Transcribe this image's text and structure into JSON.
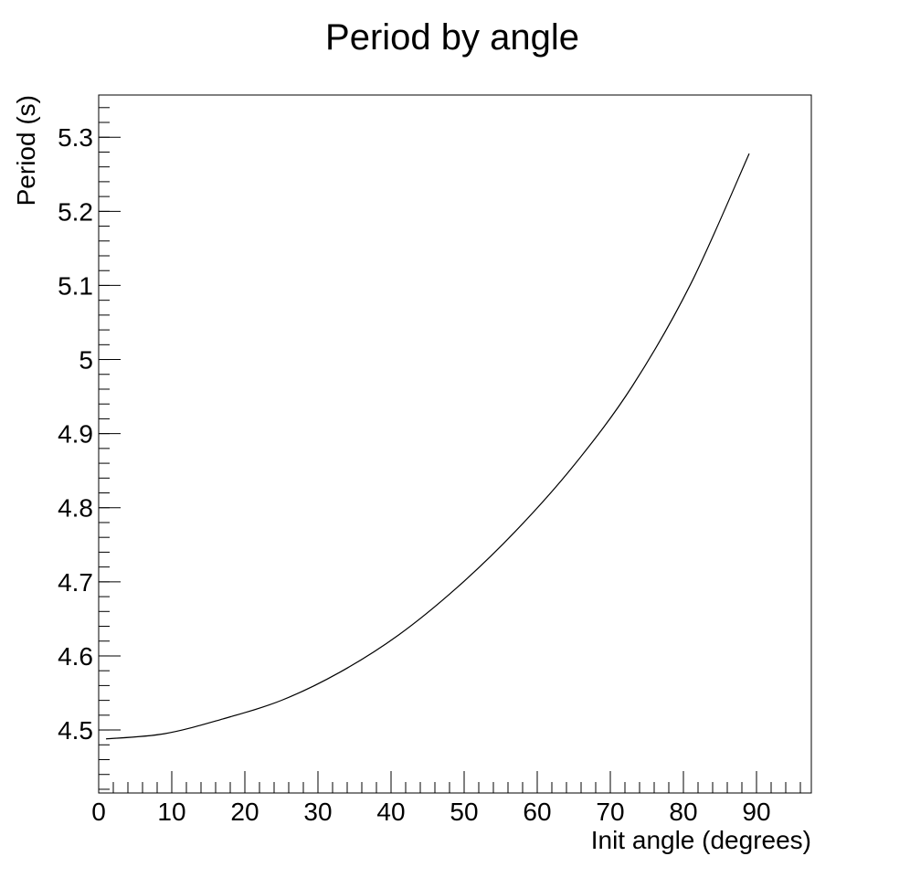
{
  "chart_data": {
    "type": "line",
    "title": "Period by angle",
    "xlabel": "Init angle (degrees)",
    "ylabel": "Period (s)",
    "xlim": [
      0,
      97.5
    ],
    "ylim": [
      4.415,
      5.357
    ],
    "x_ticks": [
      0,
      10,
      20,
      30,
      40,
      50,
      60,
      70,
      80,
      90
    ],
    "x_tick_labels": [
      "0",
      "10",
      "20",
      "30",
      "40",
      "50",
      "60",
      "70",
      "80",
      "90"
    ],
    "y_ticks": [
      4.5,
      4.6,
      4.7,
      4.8,
      4.9,
      5,
      5.1,
      5.2,
      5.3
    ],
    "y_tick_labels": [
      "4.5",
      "4.6",
      "4.7",
      "4.8",
      "4.9",
      "5",
      "5.1",
      "5.2",
      "5.3"
    ],
    "grid": false,
    "legend": "none",
    "series": [
      {
        "color": "#000000",
        "x": [
          1,
          9,
          17,
          25,
          33,
          41,
          49,
          57,
          65,
          73,
          81,
          89
        ],
        "y": [
          4.488,
          4.495,
          4.515,
          4.54,
          4.578,
          4.628,
          4.692,
          4.768,
          4.857,
          4.964,
          5.102,
          5.278
        ]
      }
    ]
  }
}
